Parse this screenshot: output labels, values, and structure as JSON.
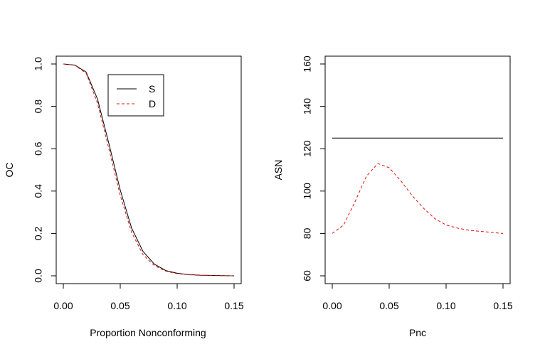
{
  "chart_data": [
    {
      "type": "line",
      "title": "",
      "xlabel": "Proportion Nonconforming",
      "ylabel": "OC",
      "xlim": [
        0,
        0.15
      ],
      "ylim": [
        0,
        1
      ],
      "xticks": [
        0.0,
        0.05,
        0.1,
        0.15
      ],
      "xtick_labels": [
        "0.00",
        "0.05",
        "0.10",
        "0.15"
      ],
      "yticks": [
        0.0,
        0.2,
        0.4,
        0.6,
        0.8,
        1.0
      ],
      "ytick_labels": [
        "0.0",
        "0.2",
        "0.4",
        "0.6",
        "0.8",
        "1.0"
      ],
      "legend": {
        "position": "top-right-inset",
        "entries": [
          "S",
          "D"
        ]
      },
      "x": [
        0,
        0.01,
        0.02,
        0.03,
        0.04,
        0.05,
        0.06,
        0.07,
        0.08,
        0.09,
        0.1,
        0.11,
        0.12,
        0.13,
        0.14,
        0.15
      ],
      "series": [
        {
          "name": "S",
          "color": "#000000",
          "dash": "solid",
          "values": [
            1.0,
            0.995,
            0.962,
            0.835,
            0.625,
            0.405,
            0.225,
            0.115,
            0.055,
            0.025,
            0.012,
            0.006,
            0.003,
            0.002,
            0.001,
            0.0
          ]
        },
        {
          "name": "D",
          "color": "#e01010",
          "dash": "dashed",
          "values": [
            1.0,
            0.994,
            0.957,
            0.815,
            0.6,
            0.38,
            0.205,
            0.1,
            0.048,
            0.022,
            0.01,
            0.005,
            0.002,
            0.001,
            0.0005,
            0.0
          ]
        }
      ]
    },
    {
      "type": "line",
      "title": "",
      "xlabel": "Pnc",
      "ylabel": "ASN",
      "xlim": [
        0,
        0.15
      ],
      "ylim": [
        60,
        160
      ],
      "xticks": [
        0.0,
        0.05,
        0.1,
        0.15
      ],
      "xtick_labels": [
        "0.00",
        "0.05",
        "0.10",
        "0.15"
      ],
      "yticks": [
        60,
        80,
        100,
        120,
        140,
        160
      ],
      "ytick_labels": [
        "60",
        "80",
        "100",
        "120",
        "140",
        "160"
      ],
      "x": [
        0,
        0.01,
        0.02,
        0.03,
        0.04,
        0.05,
        0.06,
        0.07,
        0.08,
        0.09,
        0.1,
        0.11,
        0.12,
        0.13,
        0.14,
        0.15
      ],
      "series": [
        {
          "name": "S",
          "color": "#000000",
          "dash": "solid",
          "values": [
            125,
            125,
            125,
            125,
            125,
            125,
            125,
            125,
            125,
            125,
            125,
            125,
            125,
            125,
            125,
            125
          ]
        },
        {
          "name": "D",
          "color": "#e01010",
          "dash": "dashed",
          "values": [
            80,
            84,
            95,
            107,
            113,
            111,
            105,
            98,
            92,
            87,
            84,
            82.5,
            81.5,
            81,
            80.5,
            80
          ]
        }
      ]
    }
  ]
}
